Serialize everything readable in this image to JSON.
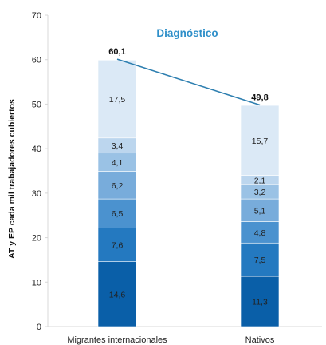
{
  "chart_data": {
    "type": "bar",
    "stacked": true,
    "title": "Diagnóstico",
    "ylabel": "AT y EP cada mil trabajadores cubiertos",
    "xlabel": "",
    "ylim": [
      0,
      70
    ],
    "yticks": [
      0,
      10,
      20,
      30,
      40,
      50,
      60,
      70
    ],
    "grid": false,
    "legend": "none",
    "categories": [
      "Migrantes internacionales",
      "Nativos"
    ],
    "segment_labels": [
      [
        "14,6",
        "7,6",
        "6,5",
        "6,2",
        "4,1",
        "3,4",
        "17,5"
      ],
      [
        "11,3",
        "7,5",
        "4,8",
        "5,1",
        "3,2",
        "2,1",
        "15,7"
      ]
    ],
    "segment_values": [
      [
        14.6,
        7.6,
        6.5,
        6.2,
        4.1,
        3.4,
        17.5
      ],
      [
        11.3,
        7.5,
        4.8,
        5.1,
        3.2,
        2.1,
        15.7
      ]
    ],
    "totals": [
      60.1,
      49.8
    ],
    "total_labels": [
      "60,1",
      "49,8"
    ],
    "segment_colors": [
      "#0a5fa8",
      "#2479c0",
      "#4b92cf",
      "#78acdb",
      "#9ac2e5",
      "#bcd6ee",
      "#dbe9f6"
    ],
    "trend_line_color": "#2e7fb0",
    "title_color": "#2e8fc9"
  }
}
